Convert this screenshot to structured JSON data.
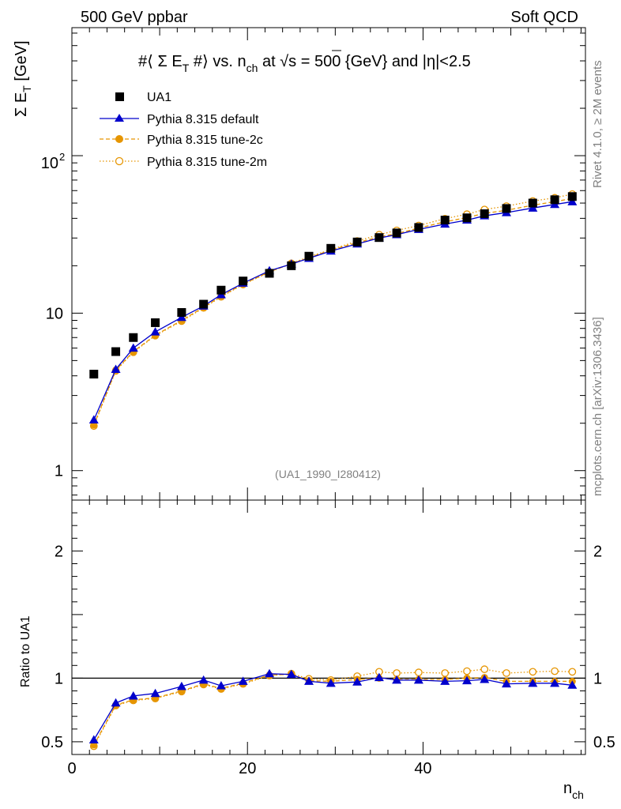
{
  "header": {
    "left": "500 GeV ppbar",
    "right": "Soft QCD"
  },
  "side_labels": {
    "rivet": "Rivet 4.1.0, ≥ 2M events",
    "mcplots": "mcplots.cern.ch [arXiv:1306.3436]"
  },
  "colors": {
    "data": "#000000",
    "default": "#0000cc",
    "tune": "#e69500"
  },
  "chart_data": [
    {
      "type": "line",
      "panel": "main",
      "title": "#⟨ Σ E_T #⟩ vs. n_ch at √s = 500 {GeV} and |η|<2.5",
      "title_parts": {
        "a": "#⟨ Σ E",
        "a_sub": "T",
        "b": " #⟩ vs. n",
        "b_sub": "ch",
        "c": " at √",
        "c_over": "s",
        "d": " = 500 {GeV} and |η|<2.5"
      },
      "ylabel": "Σ E_T [GeV]",
      "ylabel_parts": {
        "main": "Σ E",
        "sub": "T",
        "unit": " [GeV]"
      },
      "yscale": "log",
      "ylim": [
        0.65,
        650
      ],
      "xlim": [
        0,
        58.5
      ],
      "y_tick_labels": [
        {
          "value": 1,
          "label": "1"
        },
        {
          "value": 10,
          "label": "10"
        },
        {
          "value": 100,
          "label": "10",
          "sup": "2"
        }
      ],
      "watermark": "(UA1_1990_I280412)",
      "legend_position": "top-left",
      "x": [
        2.5,
        5,
        7,
        9.5,
        12.5,
        15,
        17,
        19.5,
        22.5,
        25,
        27,
        29.5,
        32.5,
        35,
        37,
        39.5,
        42.5,
        45,
        47,
        49.5,
        52.5,
        55,
        57
      ],
      "series": [
        {
          "name": "UA1",
          "style": "data",
          "values": [
            4.1,
            5.7,
            7.0,
            8.7,
            10.1,
            11.4,
            14.0,
            16.0,
            17.9,
            20.0,
            23.0,
            25.8,
            28.3,
            30.2,
            32.3,
            35.0,
            39.0,
            40.3,
            42.8,
            46.2,
            50.0,
            52.5,
            55.0
          ]
        },
        {
          "name": "Pythia 8.315 default",
          "style": "default",
          "values": [
            2.1,
            4.4,
            6.0,
            7.6,
            9.4,
            11.1,
            13.1,
            15.5,
            18.6,
            20.5,
            22.3,
            24.8,
            27.5,
            30.0,
            31.5,
            34.0,
            36.8,
            39.0,
            41.5,
            43.5,
            46.5,
            49.0,
            51.0
          ]
        },
        {
          "name": "Pythia 8.315 tune-2c",
          "style": "tune2c",
          "values": [
            1.95,
            4.35,
            5.7,
            7.25,
            9.0,
            10.9,
            12.8,
            15.3,
            18.3,
            20.6,
            22.5,
            25.2,
            28.0,
            30.5,
            32.0,
            34.7,
            38.0,
            40.5,
            43.0,
            45.0,
            48.5,
            51.0,
            53.5
          ]
        },
        {
          "name": "Pythia 8.315 tune-2m",
          "style": "tune2m",
          "values": [
            1.92,
            4.3,
            5.65,
            7.2,
            8.9,
            10.8,
            12.7,
            15.2,
            18.2,
            20.7,
            22.8,
            25.3,
            28.7,
            31.5,
            33.5,
            36.0,
            39.8,
            42.5,
            45.5,
            47.8,
            51.5,
            54.0,
            57.0
          ]
        }
      ]
    },
    {
      "type": "line",
      "panel": "ratio",
      "ylabel": "Ratio to UA1",
      "xlabel": "n_ch",
      "xlabel_parts": {
        "main": "n",
        "sub": "ch"
      },
      "ylim": [
        0.4,
        2.4
      ],
      "xlim": [
        0,
        58.5
      ],
      "y_ticks": [
        0.5,
        1,
        2
      ],
      "y_tick_labels": [
        "0.5",
        "1",
        "2"
      ],
      "x_ticks": [
        0,
        20,
        40
      ],
      "x_tick_labels": [
        "0",
        "20",
        "40"
      ],
      "reference_line": 1,
      "x": [
        2.5,
        5,
        7,
        9.5,
        12.5,
        15,
        17,
        19.5,
        22.5,
        25,
        27,
        29.5,
        32.5,
        35,
        37,
        39.5,
        42.5,
        45,
        47,
        49.5,
        52.5,
        55,
        57
      ],
      "series": [
        {
          "name": "Pythia 8.315 default",
          "style": "default",
          "values": [
            0.515,
            0.805,
            0.86,
            0.88,
            0.935,
            0.985,
            0.94,
            0.975,
            1.035,
            1.03,
            0.975,
            0.96,
            0.97,
            1.005,
            0.985,
            0.985,
            0.975,
            0.98,
            0.99,
            0.955,
            0.96,
            0.96,
            0.945
          ]
        },
        {
          "name": "Pythia 8.315 tune-2c",
          "style": "tune2c",
          "values": [
            0.475,
            0.79,
            0.83,
            0.845,
            0.9,
            0.955,
            0.92,
            0.96,
            1.025,
            1.03,
            0.98,
            0.975,
            0.99,
            1.0,
            0.99,
            0.99,
            0.99,
            1.0,
            1.005,
            0.975,
            0.975,
            0.975,
            0.975
          ]
        },
        {
          "name": "Pythia 8.315 tune-2m",
          "style": "tune2m",
          "values": [
            0.465,
            0.785,
            0.825,
            0.84,
            0.895,
            0.95,
            0.915,
            0.955,
            1.02,
            1.035,
            0.995,
            0.985,
            1.015,
            1.05,
            1.04,
            1.045,
            1.04,
            1.055,
            1.07,
            1.04,
            1.05,
            1.055,
            1.05
          ]
        }
      ]
    }
  ]
}
